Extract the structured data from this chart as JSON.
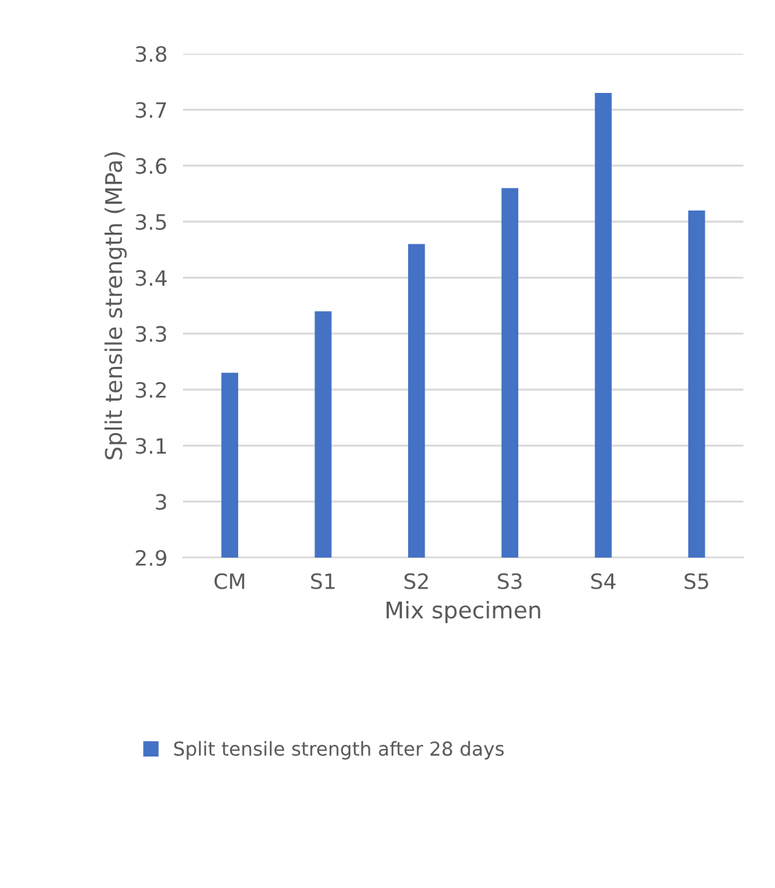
{
  "chart_data": {
    "type": "bar",
    "xlabel": "Mix specimen",
    "ylabel": "Split tensile strength (MPa)",
    "categories": [
      "CM",
      "S1",
      "S2",
      "S3",
      "S4",
      "S5"
    ],
    "series": [
      {
        "name": "Split tensile strength after 28 days",
        "color": "#4472c4",
        "values": [
          3.23,
          3.34,
          3.46,
          3.56,
          3.73,
          3.52
        ]
      }
    ],
    "ylim": [
      2.9,
      3.8
    ],
    "yticks": [
      2.9,
      3,
      3.1,
      3.2,
      3.3,
      3.4,
      3.5,
      3.6,
      3.7,
      3.8
    ],
    "grid": "y",
    "legend": "bottom"
  }
}
